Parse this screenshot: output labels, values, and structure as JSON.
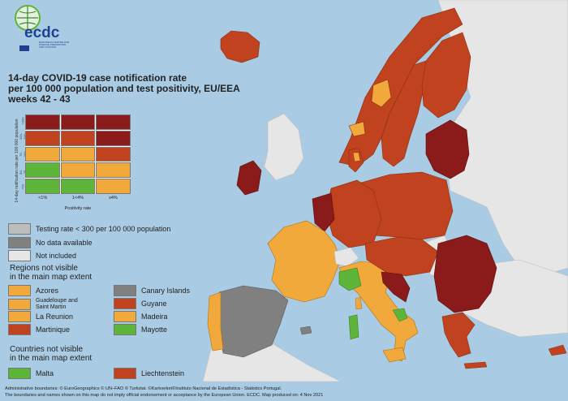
{
  "title": "14-day COVID-19 case notification rate per 100 000 population and test positivity, EU/EEA weeks 42 - 43",
  "title_lines": [
    "14-day COVID-19 case notification rate",
    "per 100 000 population and test positivity, EU/EEA",
    "weeks 42 - 43"
  ],
  "logo": {
    "text": "ecdc",
    "subtitle": "EUROPEAN CENTRE FOR DISEASE PREVENTION AND CONTROL"
  },
  "matrix": {
    "y_label": "14-day notification rate per 100 000 population",
    "x_label": "Positivity rate",
    "col_labels": [
      "<1%",
      "1<4%",
      "≥4%"
    ],
    "row_labels": [
      ">500",
      "200-500",
      "75-200",
      "50-75",
      "<50"
    ],
    "cells": [
      [
        "#8b1a1a",
        "#8b1a1a",
        "#8b1a1a"
      ],
      [
        "#c0421e",
        "#c0421e",
        "#8b1a1a"
      ],
      [
        "#f2a93b",
        "#f2a93b",
        "#c0421e"
      ],
      [
        "#5db53a",
        "#f2a93b",
        "#f2a93b"
      ],
      [
        "#5db53a",
        "#5db53a",
        "#f2a93b"
      ]
    ]
  },
  "legend": {
    "testing": "Testing rate < 300 per 100 000 population",
    "no_data": "No data available",
    "not_included": "Not included",
    "regions_heading": "Regions not visible\nin the main map extent",
    "regions_heading_lines": [
      "Regions not visible",
      "in the main map extent"
    ],
    "regions": [
      {
        "label": "Azores",
        "color": "#f2a93b"
      },
      {
        "label": "Canary Islands",
        "color": "#808080"
      },
      {
        "label": "Guadeloupe and Saint Martin",
        "color": "#f2a93b"
      },
      {
        "label": "Guyane",
        "color": "#c0421e"
      },
      {
        "label": "La Reunion",
        "color": "#f2a93b"
      },
      {
        "label": "Madeira",
        "color": "#f2a93b"
      },
      {
        "label": "Martinique",
        "color": "#c0421e"
      },
      {
        "label": "Mayotte",
        "color": "#5db53a"
      }
    ],
    "countries_heading_lines": [
      "Countries not visible",
      "in the main map extent"
    ],
    "countries": [
      {
        "label": "Malta",
        "color": "#5db53a"
      },
      {
        "label": "Liechtenstein",
        "color": "#c0421e"
      }
    ]
  },
  "colors": {
    "dark_red": "#8b1a1a",
    "red": "#c0421e",
    "orange": "#f2a93b",
    "green": "#5db53a",
    "grey_testing": "#bdbdbd",
    "grey_nodata": "#808080",
    "not_included": "#e6e6e6",
    "sea": "#a9cbe3"
  },
  "footer": {
    "line1": "Administrative boundaries: © EuroGeographics © UN–FAO © Turkstat. ©Kartverket©Instituto Nacional de Estadística - Statistics Portugal.",
    "line2": "The boundaries and names shown on this map do not imply official endorsement or acceptance by the European Union. ECDC. Map produced on: 4 Nov 2021"
  }
}
